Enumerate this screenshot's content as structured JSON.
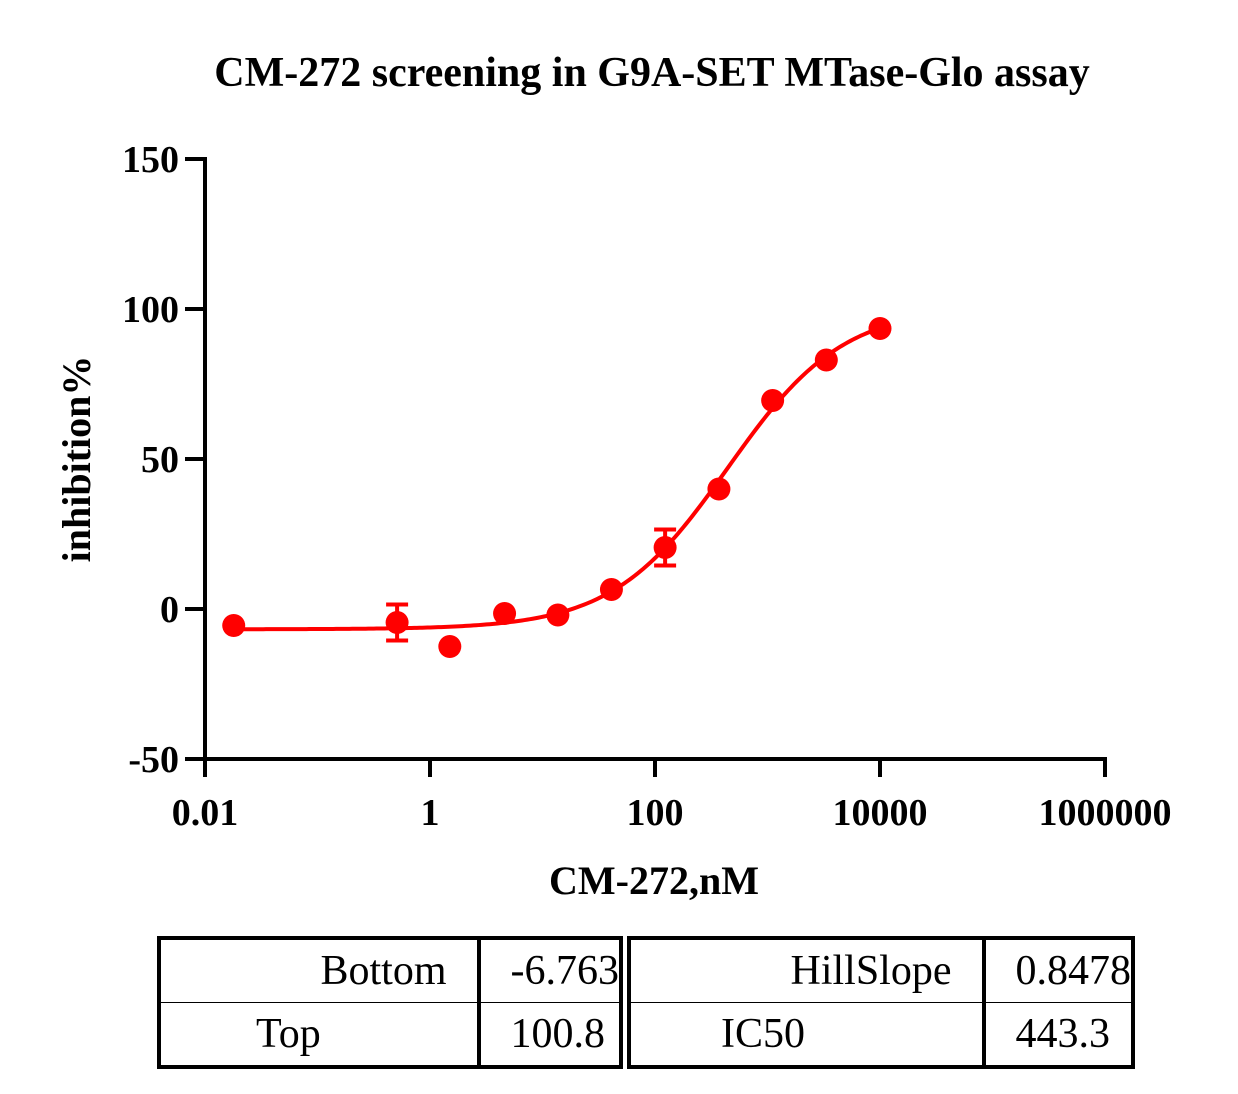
{
  "chart_data": {
    "type": "scatter",
    "title": "CM-272 screening in G9A-SET MTase-Glo assay",
    "xlabel": "CM-272,nM",
    "ylabel": "inhibition%",
    "xscale": "log",
    "xlim": [
      0.01,
      1000000
    ],
    "ylim": [
      -50,
      150
    ],
    "xticks": [
      0.01,
      1,
      100,
      10000,
      1000000
    ],
    "xtick_labels": [
      "0.01",
      "1",
      "100",
      "10000",
      "1000000"
    ],
    "yticks": [
      -50,
      0,
      50,
      100,
      150
    ],
    "ytick_labels": [
      "-50",
      "0",
      "50",
      "100",
      "150"
    ],
    "color": "#ff0000",
    "series": [
      {
        "points": [
          {
            "x": 0.018,
            "y": -5.5,
            "err": 0
          },
          {
            "x": 0.51,
            "y": -4.5,
            "err": 6
          },
          {
            "x": 1.5,
            "y": -12.5,
            "err": 0
          },
          {
            "x": 4.6,
            "y": -1.5,
            "err": 0
          },
          {
            "x": 13.7,
            "y": -2,
            "err": 0
          },
          {
            "x": 41,
            "y": 6.5,
            "err": 0
          },
          {
            "x": 123,
            "y": 20.5,
            "err": 6
          },
          {
            "x": 370,
            "y": 40,
            "err": 0
          },
          {
            "x": 1111,
            "y": 69.5,
            "err": 0
          },
          {
            "x": 3333,
            "y": 83,
            "err": 0
          },
          {
            "x": 10000,
            "y": 93.5,
            "err": 0
          }
        ],
        "fit": {
          "model": "four-parameter logistic",
          "bottom": -6.763,
          "top": 100.8,
          "hillslope": 0.8478,
          "ic50": 443.3
        }
      }
    ]
  },
  "params_table": {
    "left": [
      {
        "name": "Bottom",
        "value": "-6.763"
      },
      {
        "name": "Top",
        "value": "100.8"
      }
    ],
    "right": [
      {
        "name": "HillSlope",
        "value": "0.8478"
      },
      {
        "name": "IC50",
        "value": "443.3"
      }
    ]
  }
}
